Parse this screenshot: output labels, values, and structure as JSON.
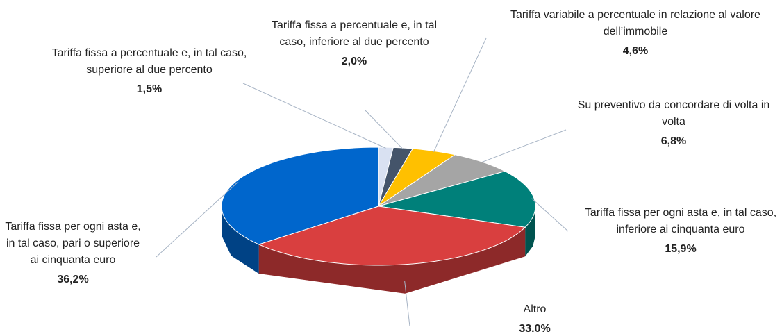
{
  "chart_data": {
    "type": "pie",
    "categories": [
      "Tariffa fissa a percentuale e, in tal caso, superiore al due percento",
      "Tariffa fissa a percentuale e, in tal caso, inferiore al due percento",
      "Tariffa variabile a percentuale in relazione al valore dell’immobile",
      "Su preventivo da concordare di volta in volta",
      "Tariffa fissa per ogni asta e, in tal caso, inferiore ai cinquanta euro",
      "Altro",
      "Tariffa fissa per ogni asta e, in tal caso, pari o superiore ai cinquanta euro"
    ],
    "values": [
      1.5,
      2.0,
      4.6,
      6.8,
      15.9,
      33.0,
      36.2
    ],
    "value_labels": [
      "1,5%",
      "2,0%",
      "4,6%",
      "6,8%",
      "15,9%",
      "33.0%",
      "36,2%"
    ],
    "colors": [
      "#d9e1f2",
      "#44546a",
      "#ffc000",
      "#a5a5a5",
      "#00807a",
      "#d93f3f",
      "#0066cc"
    ]
  }
}
